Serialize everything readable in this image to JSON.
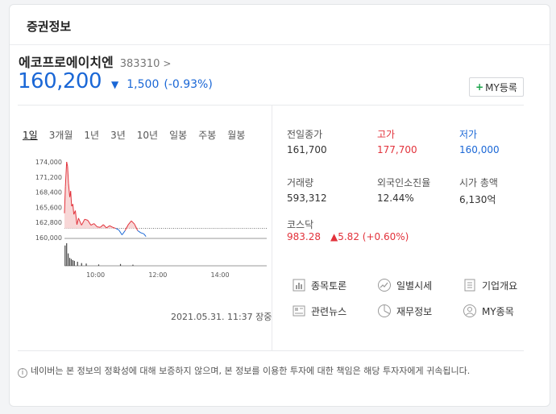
{
  "header": {
    "title": "증권정보"
  },
  "stock": {
    "name": "에코프로에이치엔",
    "code": "383310",
    "code_arrow": ">",
    "price": "160,200",
    "change_arrow": "▼",
    "change": "1,500",
    "change_rate": "(-0.93%)",
    "my_button": "MY등록",
    "my_button_plus": "+"
  },
  "tabs": [
    "1일",
    "3개월",
    "1년",
    "3년",
    "10년",
    "일봉",
    "주봉",
    "월봉"
  ],
  "chart_data": {
    "type": "line",
    "y_ticks": [
      "174,000",
      "171,200",
      "168,400",
      "165,600",
      "162,800",
      "160,000"
    ],
    "ylim": [
      160000,
      174000
    ],
    "x_ticks": [
      "10:00",
      "12:00",
      "14:00"
    ],
    "xlim_hours": [
      9,
      15.5
    ],
    "prev_close": 161700,
    "series": [
      {
        "points": [
          [
            9.0,
            164500
          ],
          [
            9.03,
            169500
          ],
          [
            9.07,
            174000
          ],
          [
            9.1,
            173200
          ],
          [
            9.13,
            170000
          ],
          [
            9.17,
            167500
          ],
          [
            9.2,
            168600
          ],
          [
            9.23,
            165800
          ],
          [
            9.27,
            166200
          ],
          [
            9.3,
            164300
          ],
          [
            9.35,
            165000
          ],
          [
            9.4,
            162400
          ],
          [
            9.45,
            163600
          ],
          [
            9.55,
            162300
          ],
          [
            9.65,
            163400
          ],
          [
            9.75,
            163200
          ],
          [
            9.85,
            162300
          ],
          [
            9.95,
            162600
          ],
          [
            10.05,
            162000
          ],
          [
            10.15,
            161900
          ],
          [
            10.25,
            162400
          ],
          [
            10.35,
            161800
          ],
          [
            10.45,
            162200
          ],
          [
            10.55,
            161900
          ],
          [
            10.65,
            161700
          ],
          [
            10.75,
            161400
          ],
          [
            10.85,
            160500
          ],
          [
            10.95,
            161300
          ],
          [
            11.05,
            162400
          ],
          [
            11.15,
            163100
          ],
          [
            11.25,
            162500
          ],
          [
            11.35,
            161300
          ],
          [
            11.45,
            160900
          ],
          [
            11.55,
            160700
          ],
          [
            11.62,
            160200
          ]
        ],
        "volume": [
          9.02,
          0.9,
          9.07,
          1.0,
          9.12,
          0.55,
          9.17,
          0.35,
          9.22,
          0.3,
          9.27,
          0.25,
          9.32,
          0.22,
          9.42,
          0.18,
          9.55,
          0.12,
          9.7,
          0.1,
          10.1,
          0.06,
          10.8,
          0.08,
          11.2,
          0.05
        ]
      }
    ]
  },
  "timestamp": "2021.05.31. 11:37 장중",
  "info": {
    "prev_close_label": "전일종가",
    "prev_close": "161,700",
    "high_label": "고가",
    "high": "177,700",
    "low_label": "저가",
    "low": "160,000",
    "volume_label": "거래량",
    "volume": "593,312",
    "foreign_label": "외국인소진율",
    "foreign": "12.44%",
    "mcap_label": "시가 총액",
    "mcap": "6,130억"
  },
  "kosdaq": {
    "label": "코스닥",
    "value": "983.28",
    "change": "▲5.82 (+0.60%)"
  },
  "links": [
    {
      "label": "종목토론",
      "icon": "discussion-chart-icon"
    },
    {
      "label": "일별시세",
      "icon": "trend-circle-icon"
    },
    {
      "label": "기업개요",
      "icon": "list-document-icon"
    },
    {
      "label": "관련뉴스",
      "icon": "news-icon"
    },
    {
      "label": "재무정보",
      "icon": "pie-chart-icon"
    },
    {
      "label": "MY종목",
      "icon": "user-icon"
    }
  ],
  "notice": {
    "icon": "i",
    "text": "네이버는 본 정보의 정확성에 대해 보증하지 않으며, 본 정보를 이용한 투자에 대한 책임은 해당 투자자에게 귀속됩니다."
  },
  "colors": {
    "up": "#e2323b",
    "down": "#1a67d6",
    "my_plus": "#1aa34a"
  }
}
